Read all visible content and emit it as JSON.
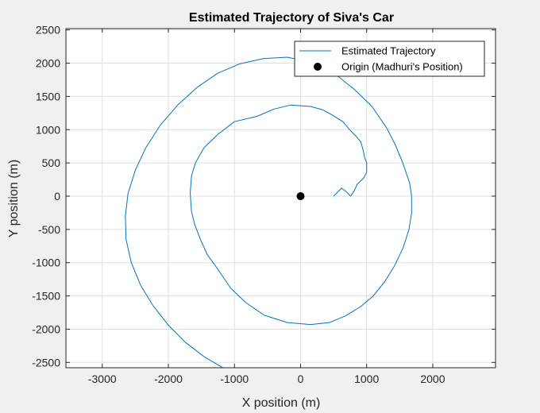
{
  "chart_data": {
    "type": "line",
    "title": "Estimated Trajectory of Siva's Car",
    "xlabel": "X position (m)",
    "ylabel": "Y position (m)",
    "xlim": [
      -3550,
      2950
    ],
    "ylim": [
      -2580,
      2520
    ],
    "xticks": [
      -3000,
      -2000,
      -1000,
      0,
      1000,
      2000
    ],
    "yticks": [
      -2500,
      -2000,
      -1500,
      -1000,
      -500,
      0,
      500,
      1000,
      1500,
      2000,
      2500
    ],
    "xtick_labels": [
      "-3000",
      "-2000",
      "-1000",
      "0",
      "1000",
      "2000"
    ],
    "ytick_labels": [
      "-2500",
      "-2000",
      "-1500",
      "-1000",
      "-500",
      "0",
      "500",
      "1000",
      "1500",
      "2000",
      "2500"
    ],
    "grid": true,
    "legend_location": "top-right",
    "series": [
      {
        "name": "Estimated Trajectory",
        "kind": "line",
        "color": "#0072bd",
        "points": [
          [
            500,
            0
          ],
          [
            620,
            120
          ],
          [
            700,
            60
          ],
          [
            760,
            0
          ],
          [
            810,
            80
          ],
          [
            860,
            180
          ],
          [
            960,
            280
          ],
          [
            1000,
            360
          ],
          [
            1000,
            500
          ],
          [
            970,
            580
          ],
          [
            940,
            720
          ],
          [
            910,
            820
          ],
          [
            840,
            900
          ],
          [
            760,
            980
          ],
          [
            640,
            1120
          ],
          [
            480,
            1220
          ],
          [
            330,
            1300
          ],
          [
            150,
            1350
          ],
          [
            -150,
            1370
          ],
          [
            -400,
            1310
          ],
          [
            -660,
            1200
          ],
          [
            -1000,
            1120
          ],
          [
            -1250,
            930
          ],
          [
            -1460,
            730
          ],
          [
            -1590,
            500
          ],
          [
            -1650,
            300
          ],
          [
            -1670,
            50
          ],
          [
            -1650,
            -230
          ],
          [
            -1600,
            -430
          ],
          [
            -1520,
            -640
          ],
          [
            -1410,
            -880
          ],
          [
            -1250,
            -1100
          ],
          [
            -1060,
            -1380
          ],
          [
            -830,
            -1600
          ],
          [
            -550,
            -1790
          ],
          [
            -200,
            -1900
          ],
          [
            150,
            -1930
          ],
          [
            440,
            -1900
          ],
          [
            680,
            -1800
          ],
          [
            910,
            -1660
          ],
          [
            1100,
            -1500
          ],
          [
            1270,
            -1290
          ],
          [
            1420,
            -1050
          ],
          [
            1550,
            -780
          ],
          [
            1640,
            -500
          ],
          [
            1680,
            -250
          ],
          [
            1680,
            0
          ],
          [
            1650,
            200
          ],
          [
            1540,
            520
          ],
          [
            1430,
            780
          ],
          [
            1300,
            1030
          ],
          [
            1080,
            1350
          ],
          [
            820,
            1600
          ],
          [
            520,
            1840
          ],
          [
            170,
            2010
          ],
          [
            -200,
            2090
          ],
          [
            -560,
            2070
          ],
          [
            -920,
            1990
          ],
          [
            -1250,
            1850
          ],
          [
            -1560,
            1640
          ],
          [
            -1860,
            1370
          ],
          [
            -2120,
            1070
          ],
          [
            -2340,
            730
          ],
          [
            -2500,
            390
          ],
          [
            -2610,
            40
          ],
          [
            -2650,
            -300
          ],
          [
            -2640,
            -650
          ],
          [
            -2560,
            -1000
          ],
          [
            -2420,
            -1340
          ],
          [
            -2230,
            -1650
          ],
          [
            -2000,
            -1940
          ],
          [
            -1740,
            -2200
          ],
          [
            -1450,
            -2420
          ],
          [
            -1140,
            -2600
          ]
        ]
      },
      {
        "name": "Origin (Madhuri's Position)",
        "kind": "marker",
        "color": "#000000",
        "points": [
          [
            0,
            0
          ]
        ]
      }
    ]
  }
}
